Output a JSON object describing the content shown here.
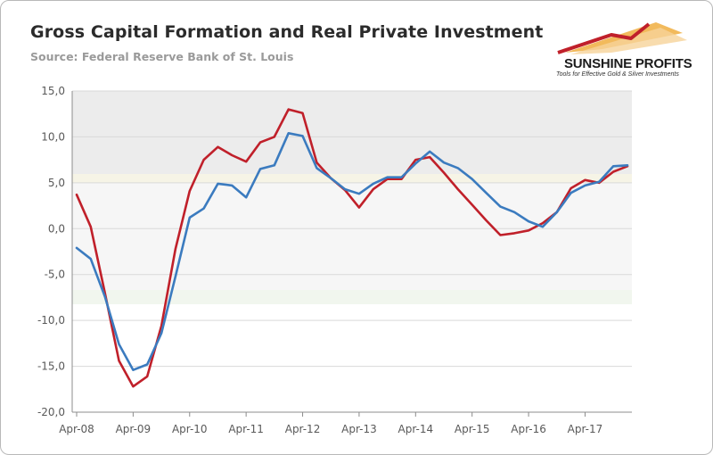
{
  "brand": {
    "name": "SUNSHINE PROFITS",
    "tagline": "Tools for Effective Gold & Silver Investments",
    "colors": {
      "red": "#c0202a",
      "orange": "#e8932a"
    }
  },
  "chart_data": {
    "type": "line",
    "title": "Gross Capital Formation and Real Private Investment",
    "subtitle": "Source: Federal Reserve Bank of St. Louis",
    "xlabel": "",
    "ylabel": "",
    "ylim": [
      -20,
      15
    ],
    "yticks": [
      15,
      10,
      5,
      0,
      -5,
      -10,
      -15,
      -20
    ],
    "ytick_labels": [
      "15,0",
      "10,0",
      "5,0",
      "0,0",
      "-5,0",
      "-10,0",
      "-15,0",
      "-20,0"
    ],
    "xtick_labels": [
      "Apr-08",
      "Apr-09",
      "Apr-10",
      "Apr-11",
      "Apr-12",
      "Apr-13",
      "Apr-14",
      "Apr-15",
      "Apr-16",
      "Apr-17"
    ],
    "xtick_index": [
      0,
      4,
      8,
      12,
      16,
      20,
      24,
      28,
      32,
      36
    ],
    "n_points": 40,
    "legend": "none",
    "series": [
      {
        "name": "Gross Capital Formation",
        "color": "#c0202a",
        "values": [
          3.7,
          0.2,
          -7.0,
          -14.4,
          -17.2,
          -16.1,
          -10.6,
          -2.2,
          4.1,
          7.5,
          8.9,
          8.0,
          7.3,
          9.4,
          10.0,
          13.0,
          12.6,
          7.2,
          5.5,
          4.2,
          2.3,
          4.3,
          5.4,
          5.4,
          7.5,
          7.8,
          6.1,
          4.3,
          2.6,
          0.9,
          -0.7,
          -0.5,
          -0.2,
          0.6,
          1.8,
          4.4,
          5.3,
          5.0,
          6.2,
          6.8
        ]
      },
      {
        "name": "Real Private Investment",
        "color": "#3b7bbf",
        "values": [
          -2.1,
          -3.3,
          -7.4,
          -12.6,
          -15.4,
          -14.8,
          -11.4,
          -5.2,
          1.2,
          2.2,
          4.9,
          4.7,
          3.4,
          6.5,
          6.9,
          10.4,
          10.1,
          6.6,
          5.5,
          4.3,
          3.8,
          4.9,
          5.6,
          5.6,
          7.1,
          8.4,
          7.2,
          6.6,
          5.4,
          3.9,
          2.4,
          1.8,
          0.8,
          0.2,
          1.8,
          3.9,
          4.7,
          5.1,
          6.8,
          6.9
        ]
      }
    ]
  }
}
